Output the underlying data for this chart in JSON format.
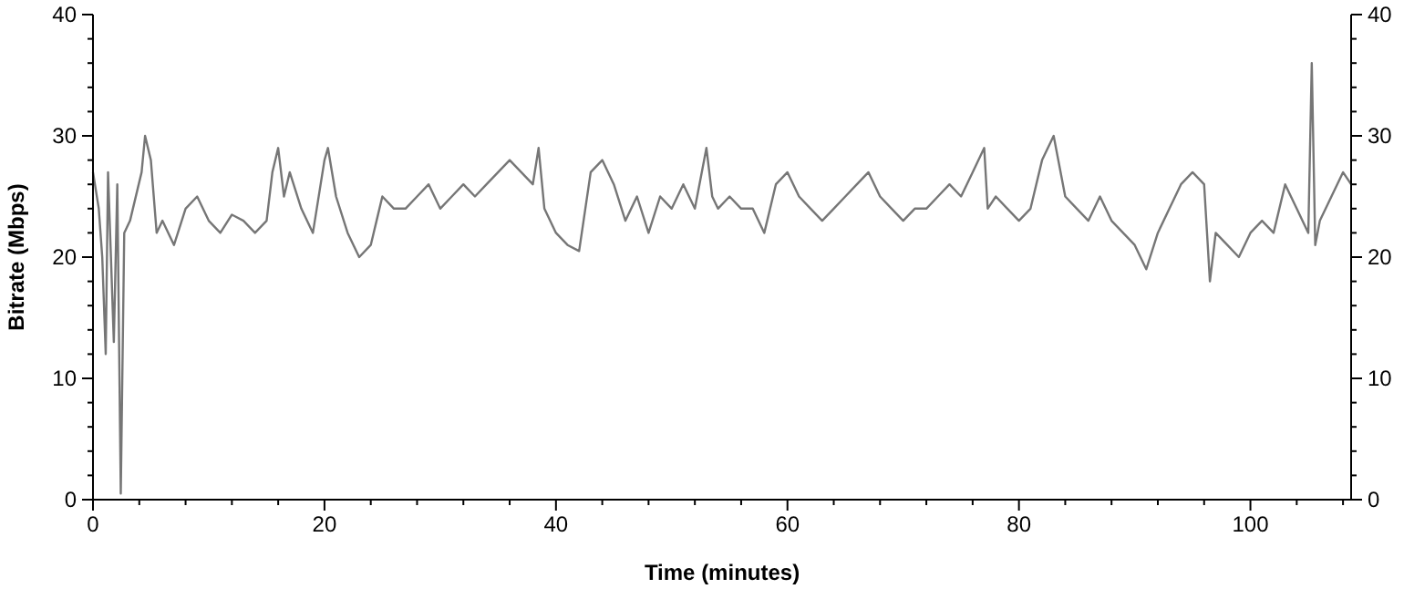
{
  "chart_data": {
    "type": "line",
    "xlabel": "Time (minutes)",
    "ylabel": "Bitrate (Mbps)",
    "xlim": [
      0,
      108.7
    ],
    "ylim": [
      0,
      40
    ],
    "xticks": [
      0,
      20,
      40,
      60,
      80,
      100
    ],
    "yticks": [
      0,
      10,
      20,
      30,
      40
    ],
    "y2lim": [
      0,
      40
    ],
    "y2ticks": [
      0,
      10,
      20,
      30,
      40
    ],
    "grid": false,
    "marker": "none",
    "line_style": "solid",
    "series": [
      {
        "color": "#767676",
        "x": [
          0,
          0.5,
          0.8,
          1.1,
          1.3,
          1.8,
          2.1,
          2.4,
          2.7,
          3.2,
          4.2,
          4.5,
          5,
          5.5,
          6,
          7,
          8,
          9,
          10,
          11,
          12,
          13,
          14,
          15,
          15.5,
          16,
          16.5,
          17,
          18,
          19,
          20,
          20.3,
          21,
          22,
          23,
          24,
          24.5,
          25,
          26,
          27,
          28,
          29,
          30,
          31,
          32,
          33,
          34,
          35,
          36,
          37,
          38,
          38.5,
          39,
          40,
          41,
          42,
          43,
          44,
          45,
          46,
          47,
          48,
          49,
          50,
          51,
          52,
          53,
          53.5,
          54,
          55,
          56,
          57,
          58,
          59,
          60,
          61,
          62,
          63,
          64,
          65,
          66,
          67,
          68,
          69,
          70,
          71,
          72,
          73,
          74,
          75,
          76,
          77,
          77.3,
          78,
          79,
          80,
          81,
          82,
          83,
          84,
          85,
          86,
          87,
          88,
          89,
          90,
          91,
          92,
          93,
          94,
          95,
          96,
          96.5,
          97,
          98,
          99,
          100,
          101,
          102,
          103,
          104,
          105,
          105.3,
          105.6,
          106,
          107,
          108,
          108.7
        ],
        "values": [
          27,
          24,
          20,
          12,
          27,
          13,
          26,
          0.5,
          22,
          23,
          27,
          30,
          28,
          22,
          23,
          21,
          24,
          25,
          23,
          22,
          23.5,
          23,
          22,
          23,
          27,
          29,
          25,
          27,
          24,
          22,
          28,
          29,
          25,
          22,
          20,
          21,
          23,
          25,
          24,
          24,
          25,
          26,
          24,
          25,
          26,
          25,
          26,
          27,
          28,
          27,
          26,
          29,
          24,
          22,
          21,
          20.5,
          27,
          28,
          26,
          23,
          25,
          22,
          25,
          24,
          26,
          24,
          29,
          25,
          24,
          25,
          24,
          24,
          22,
          26,
          27,
          25,
          24,
          23,
          24,
          25,
          26,
          27,
          25,
          24,
          23,
          24,
          24,
          25,
          26,
          25,
          27,
          29,
          24,
          25,
          24,
          23,
          24,
          28,
          30,
          25,
          24,
          23,
          25,
          23,
          22,
          21,
          19,
          22,
          24,
          26,
          27,
          26,
          18,
          22,
          21,
          20,
          22,
          23,
          22,
          26,
          24,
          22,
          36,
          21,
          23,
          25,
          27,
          26
        ]
      }
    ]
  }
}
